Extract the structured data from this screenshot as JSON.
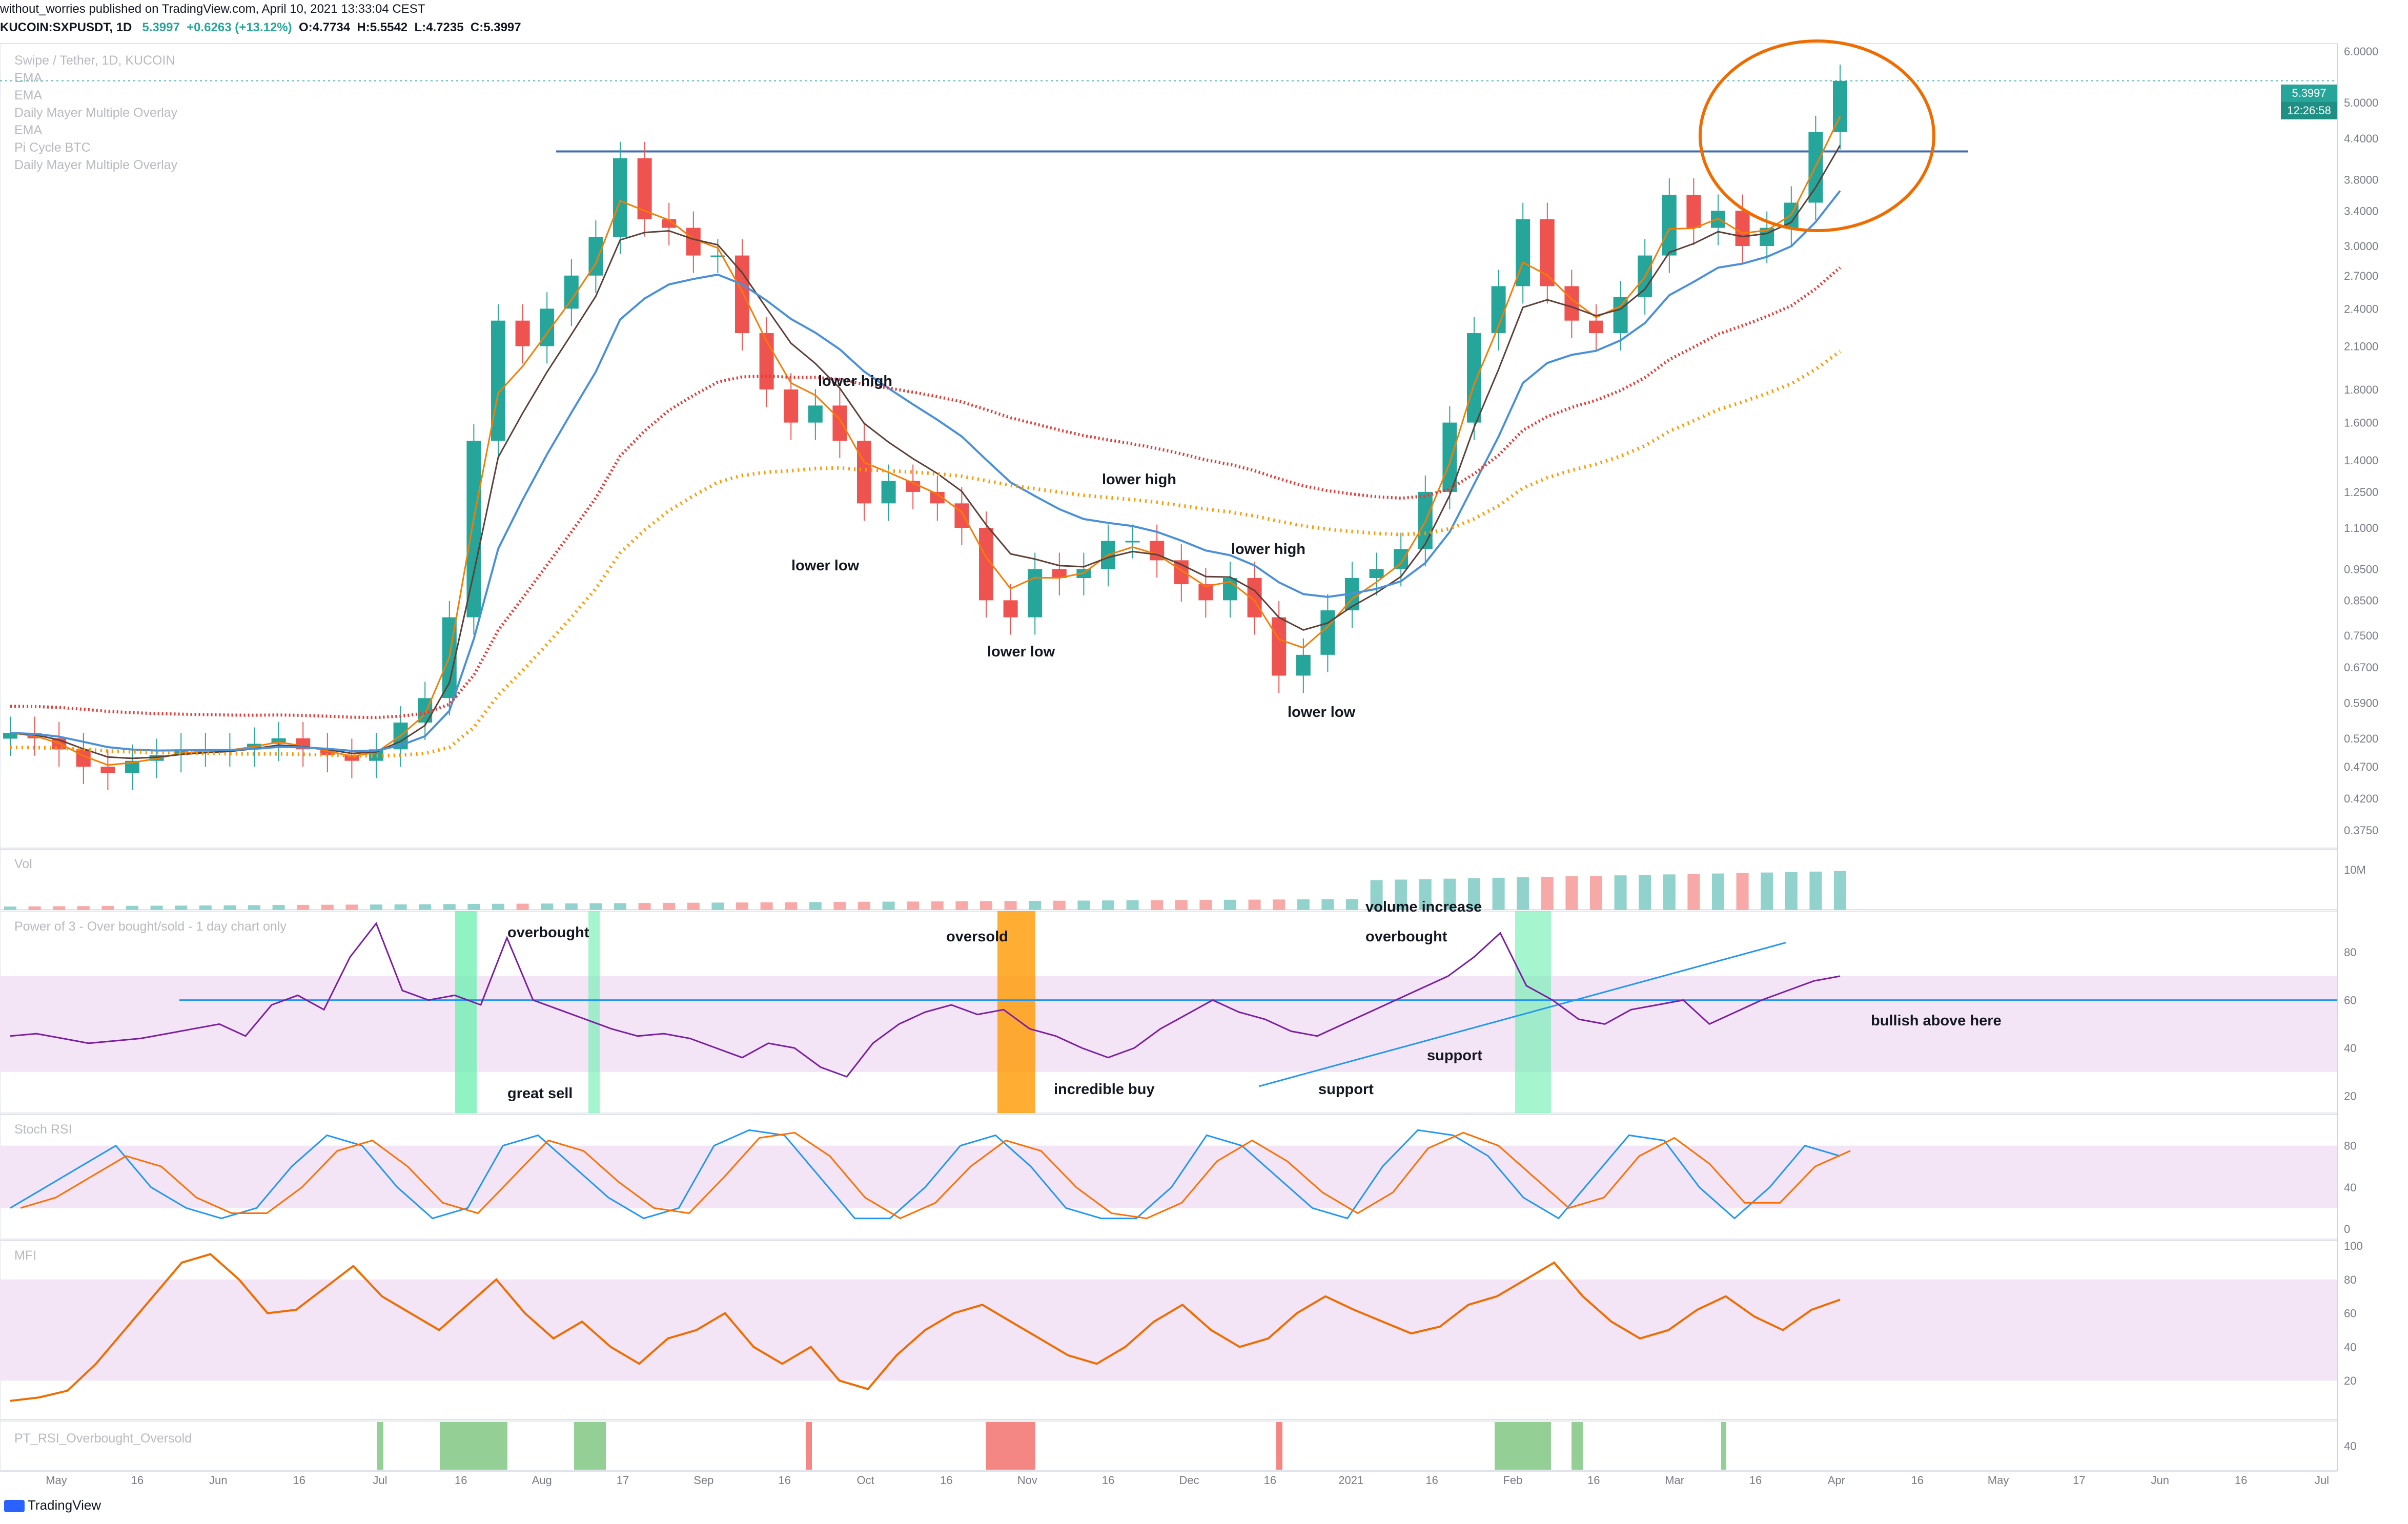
{
  "header": {
    "publisher_line": "without_worries published on TradingView.com, April 10, 2021 13:33:04 CEST",
    "symbol": "KUCOIN:SXPUSDT, 1D",
    "last": "5.3997",
    "change": "+0.6263 (+13.12%)",
    "open": "O:4.7734",
    "high": "H:5.5542",
    "low": "L:4.7235",
    "close": "C:5.3997"
  },
  "legend": [
    "Swipe / Tether, 1D, KUCOIN",
    "EMA",
    "EMA",
    "Daily Mayer Multiple Overlay",
    "EMA",
    "Pi Cycle BTC",
    "Daily Mayer Multiple Overlay"
  ],
  "pane_titles": {
    "volume": "Vol",
    "power3": "Power of 3 - Over bought/sold - 1 day chart only",
    "stoch": "Stoch RSI",
    "mfi": "MFI",
    "ptrsi": "PT_RSI_Overbought_Oversold"
  },
  "annotations": {
    "lower_high_1": "lower high",
    "lower_low_1": "lower low",
    "lower_high_2": "lower high",
    "lower_low_2": "lower low",
    "lower_high_3": "lower high",
    "lower_low_3": "lower low",
    "volume_increase": "volume increase",
    "overbought_1": "overbought",
    "great_sell": "great sell",
    "oversold": "oversold",
    "incredible_buy": "incredible buy",
    "overbought_2": "overbought",
    "support_1": "support",
    "support_2": "support",
    "bullish": "bullish above here"
  },
  "price_tags": {
    "last_price": "5.3997",
    "countdown": "12:26:58"
  },
  "footer": {
    "brand": "TradingView"
  },
  "colors": {
    "up": "#26a69a",
    "down": "#ef5350",
    "ema_fast": "#f57c00",
    "ema_mid": "#5d4037",
    "ema_slow": "#4a90d9",
    "mayer_red": "#e53935",
    "mayer_orange": "#ff9800",
    "power3": "#7b1fa2",
    "mfi": "#ef6c00",
    "stoch_k": "#2196f3",
    "stoch_d": "#ff6d00",
    "band": "#f3e5f5",
    "highlight_green": "#69f0ae",
    "highlight_orange": "#ff9800",
    "circle": "#ef6c00",
    "resistance": "#3f6fb0"
  },
  "chart_data": {
    "type": "line",
    "x_ticks": [
      "May",
      "16",
      "Jun",
      "16",
      "Jul",
      "16",
      "Aug",
      "17",
      "Sep",
      "16",
      "Oct",
      "16",
      "Nov",
      "16",
      "Dec",
      "16",
      "2021",
      "16",
      "Feb",
      "16",
      "Mar",
      "16",
      "Apr",
      "16",
      "May",
      "17",
      "Jun",
      "16",
      "Jul"
    ],
    "price_axis": [
      "6.0000",
      "5.0000",
      "4.4000",
      "3.8000",
      "3.4000",
      "3.0000",
      "2.7000",
      "2.4000",
      "2.1000",
      "1.8000",
      "1.6000",
      "1.4000",
      "1.2500",
      "1.1000",
      "0.9500",
      "0.8500",
      "0.7500",
      "0.6700",
      "0.5900",
      "0.5200",
      "0.4700",
      "0.4200",
      "0.3750"
    ],
    "volume_axis": [
      "10M"
    ],
    "oscillator_axis": [
      "80",
      "60",
      "40",
      "20"
    ],
    "mfi_axis": [
      "100",
      "80",
      "60",
      "40",
      "20"
    ],
    "ptrsi_axis": [
      "40"
    ],
    "resistance_level": 4.2,
    "close_series": [
      0.53,
      0.52,
      0.5,
      0.47,
      0.46,
      0.48,
      0.49,
      0.5,
      0.5,
      0.5,
      0.51,
      0.52,
      0.5,
      0.49,
      0.48,
      0.5,
      0.55,
      0.6,
      0.8,
      1.5,
      2.3,
      2.1,
      2.4,
      2.7,
      3.1,
      4.1,
      3.3,
      3.2,
      2.9,
      2.9,
      2.2,
      1.8,
      1.6,
      1.7,
      1.5,
      1.2,
      1.3,
      1.25,
      1.2,
      1.1,
      0.85,
      0.8,
      0.95,
      0.92,
      0.95,
      1.05,
      1.05,
      0.98,
      0.9,
      0.85,
      0.92,
      0.8,
      0.65,
      0.7,
      0.82,
      0.92,
      0.95,
      1.02,
      1.25,
      1.6,
      2.2,
      2.6,
      3.3,
      2.6,
      2.3,
      2.2,
      2.5,
      2.9,
      3.6,
      3.2,
      3.4,
      3.0,
      3.2,
      3.5,
      4.5,
      5.3997
    ],
    "power3_series": [
      45,
      46,
      44,
      42,
      43,
      44,
      46,
      48,
      50,
      45,
      58,
      62,
      56,
      78,
      92,
      64,
      60,
      62,
      58,
      86,
      60,
      56,
      52,
      48,
      45,
      46,
      44,
      40,
      36,
      42,
      40,
      32,
      28,
      42,
      50,
      55,
      58,
      54,
      56,
      48,
      45,
      40,
      36,
      40,
      48,
      54,
      60,
      55,
      52,
      47,
      45,
      50,
      55,
      60,
      65,
      70,
      78,
      88,
      66,
      60,
      52,
      50,
      56,
      58,
      60,
      50,
      55,
      60,
      64,
      68,
      70
    ],
    "stoch_series": [
      20,
      40,
      60,
      80,
      40,
      20,
      10,
      20,
      60,
      90,
      80,
      40,
      10,
      20,
      80,
      90,
      60,
      30,
      10,
      20,
      80,
      95,
      90,
      50,
      10,
      10,
      40,
      80,
      90,
      60,
      20,
      10,
      10,
      40,
      90,
      80,
      50,
      20,
      10,
      60,
      95,
      90,
      70,
      30,
      10,
      50,
      90,
      85,
      40,
      10,
      40,
      80,
      70
    ],
    "mfi_series": [
      8,
      10,
      14,
      30,
      50,
      70,
      90,
      95,
      80,
      60,
      62,
      75,
      88,
      70,
      60,
      50,
      65,
      80,
      60,
      45,
      55,
      40,
      30,
      45,
      50,
      60,
      40,
      30,
      40,
      20,
      15,
      35,
      50,
      60,
      65,
      55,
      45,
      35,
      30,
      40,
      55,
      65,
      50,
      40,
      45,
      60,
      70,
      62,
      55,
      48,
      52,
      65,
      70,
      80,
      90,
      70,
      55,
      45,
      50,
      62,
      70,
      58,
      50,
      62,
      68
    ]
  }
}
